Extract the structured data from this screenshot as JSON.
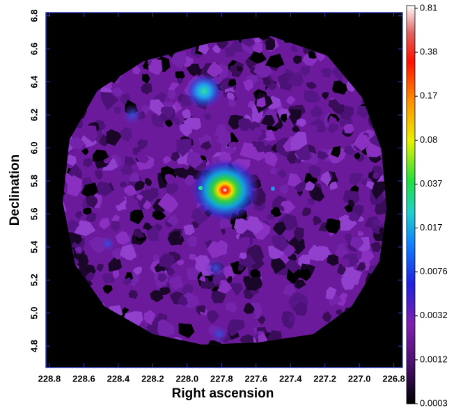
{
  "chart_data": {
    "type": "image",
    "xlabel": "Right ascension",
    "ylabel": "Declination",
    "xlim": [
      228.82,
      226.75
    ],
    "xticks": [
      228.8,
      228.6,
      228.4,
      228.2,
      {
        "value": 228,
        "label": "228.0"
      },
      227.8,
      227.6,
      227.4,
      227.2,
      {
        "value": 227,
        "label": "227.0"
      },
      226.8
    ],
    "ylim": [
      4.67,
      6.82
    ],
    "yticks": [
      4.8,
      {
        "value": 5,
        "label": "5.0"
      },
      5.2,
      5.4,
      5.6,
      5.8,
      {
        "value": 6,
        "label": "6.0"
      },
      6.2,
      6.4,
      6.6,
      6.8
    ],
    "colorbar_ticks": [
      0.0003,
      0.0012,
      0.0032,
      0.0076,
      0.017,
      0.037,
      0.08,
      0.17,
      0.38,
      0.81
    ]
  }
}
